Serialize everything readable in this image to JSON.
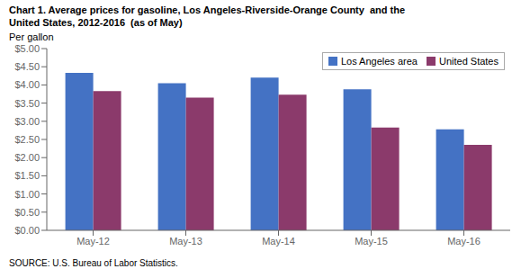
{
  "chart_data": {
    "type": "bar",
    "title": "Chart 1. Average prices for gasoline, Los Angeles-Riverside-Orange County  and the",
    "subtitle": "United States, 2012-2016  (as of May)",
    "y_label": "Per gallon",
    "annotations": [
      "SOURCE: U.S. Bureau of Labor Statistics."
    ],
    "categories": [
      "May-12",
      "May-13",
      "May-14",
      "May-15",
      "May-16"
    ],
    "series": [
      {
        "name": "Los Angeles area",
        "color": "#4472C4",
        "values": [
          4.33,
          4.05,
          4.2,
          3.88,
          2.78
        ]
      },
      {
        "name": "United States",
        "color": "#8B3A6B",
        "values": [
          3.83,
          3.65,
          3.73,
          2.83,
          2.35
        ]
      }
    ],
    "ylim": [
      0,
      5.0
    ],
    "yticks": [
      {
        "value": 0.0,
        "label": "$0.00"
      },
      {
        "value": 0.5,
        "label": "$0.50"
      },
      {
        "value": 1.0,
        "label": "$1.00"
      },
      {
        "value": 1.5,
        "label": "$1.50"
      },
      {
        "value": 2.0,
        "label": "$2.00"
      },
      {
        "value": 2.5,
        "label": "$2.50"
      },
      {
        "value": 3.0,
        "label": "$3.00"
      },
      {
        "value": 3.5,
        "label": "$3.50"
      },
      {
        "value": 4.0,
        "label": "$4.00"
      },
      {
        "value": 4.5,
        "label": "$4.50"
      },
      {
        "value": 5.0,
        "label": "$5.00"
      }
    ],
    "grid": false,
    "legend": "upper right"
  }
}
